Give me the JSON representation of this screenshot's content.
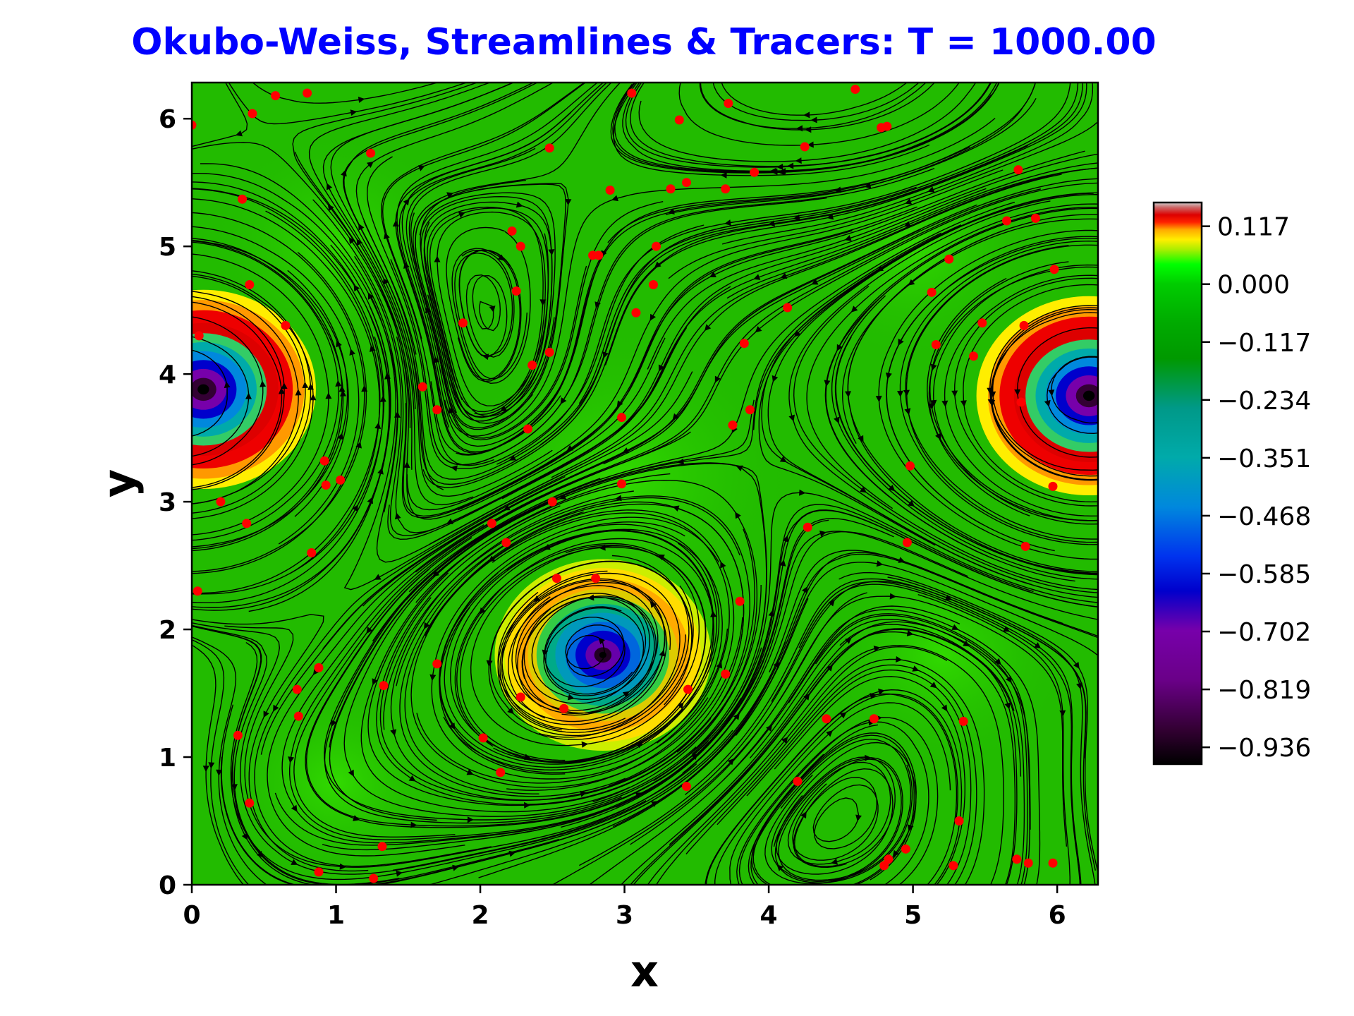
{
  "chart_data": {
    "type": "heatmap",
    "title": "Okubo-Weiss, Streamlines & Tracers: T = 1000.00",
    "title_color": "#0000ff",
    "xlabel": "x",
    "ylabel": "y",
    "xlim": [
      0,
      6.283
    ],
    "ylim": [
      0,
      6.283
    ],
    "x_ticks": [
      "0",
      "1",
      "2",
      "3",
      "4",
      "5",
      "6"
    ],
    "y_ticks": [
      "0",
      "1",
      "2",
      "3",
      "4",
      "5",
      "6"
    ],
    "colormap": "nipy_spectral",
    "background_value_color": "#22bb00",
    "streamline_color": "#000000",
    "tracer_color": "#ff0000",
    "vortices": [
      {
        "x": 0.08,
        "y": 3.88,
        "core_value": -0.936,
        "ring_value": 0.117
      },
      {
        "x": 6.22,
        "y": 3.83,
        "core_value": -0.936,
        "ring_value": 0.117
      },
      {
        "x": 2.85,
        "y": 1.8,
        "core_value": -0.936,
        "ring_value": 0.06
      }
    ],
    "colorbar": {
      "ticks": [
        "0.117",
        "0.000",
        "−0.117",
        "−0.234",
        "−0.351",
        "−0.468",
        "−0.585",
        "−0.702",
        "−0.819",
        "−0.936"
      ],
      "tick_values": [
        0.117,
        0,
        -0.117,
        -0.234,
        -0.351,
        -0.468,
        -0.585,
        -0.702,
        -0.819,
        -0.936
      ],
      "range": [
        -0.97,
        0.165
      ]
    },
    "tracers": [
      [
        0.0,
        5.95
      ],
      [
        0.42,
        6.04
      ],
      [
        0.58,
        6.18
      ],
      [
        0.8,
        6.2
      ],
      [
        0.35,
        5.37
      ],
      [
        0.4,
        4.7
      ],
      [
        0.05,
        4.3
      ],
      [
        0.65,
        4.38
      ],
      [
        0.2,
        3.0
      ],
      [
        0.38,
        2.83
      ],
      [
        0.93,
        3.13
      ],
      [
        0.92,
        3.32
      ],
      [
        1.03,
        3.17
      ],
      [
        0.83,
        2.6
      ],
      [
        0.04,
        2.3
      ],
      [
        0.73,
        1.53
      ],
      [
        0.88,
        1.7
      ],
      [
        0.74,
        1.32
      ],
      [
        0.32,
        1.17
      ],
      [
        0.4,
        0.64
      ],
      [
        0.88,
        0.1
      ],
      [
        1.32,
        0.3
      ],
      [
        1.26,
        0.05
      ],
      [
        1.33,
        1.56
      ],
      [
        1.24,
        5.73
      ],
      [
        1.6,
        3.9
      ],
      [
        1.7,
        3.72
      ],
      [
        1.88,
        4.4
      ],
      [
        1.7,
        1.73
      ],
      [
        2.02,
        1.15
      ],
      [
        2.14,
        0.88
      ],
      [
        2.08,
        2.83
      ],
      [
        2.18,
        2.68
      ],
      [
        2.28,
        1.47
      ],
      [
        2.33,
        3.57
      ],
      [
        2.36,
        4.07
      ],
      [
        2.48,
        4.17
      ],
      [
        2.5,
        3.0
      ],
      [
        2.53,
        2.4
      ],
      [
        2.58,
        1.38
      ],
      [
        2.8,
        2.4
      ],
      [
        2.9,
        5.44
      ],
      [
        2.98,
        3.66
      ],
      [
        2.98,
        3.14
      ],
      [
        2.48,
        5.77
      ],
      [
        2.22,
        5.12
      ],
      [
        2.28,
        5.0
      ],
      [
        2.25,
        4.65
      ],
      [
        2.78,
        4.93
      ],
      [
        2.82,
        4.93
      ],
      [
        3.05,
        6.2
      ],
      [
        3.08,
        4.48
      ],
      [
        3.2,
        4.7
      ],
      [
        3.22,
        5.0
      ],
      [
        3.32,
        5.45
      ],
      [
        3.38,
        5.99
      ],
      [
        3.43,
        5.5
      ],
      [
        3.44,
        1.53
      ],
      [
        3.43,
        0.77
      ],
      [
        3.7,
        1.65
      ],
      [
        3.7,
        5.45
      ],
      [
        3.72,
        6.12
      ],
      [
        3.75,
        3.6
      ],
      [
        3.8,
        2.22
      ],
      [
        3.83,
        4.24
      ],
      [
        3.87,
        3.72
      ],
      [
        3.9,
        5.58
      ],
      [
        4.13,
        4.52
      ],
      [
        4.2,
        0.81
      ],
      [
        4.25,
        5.78
      ],
      [
        4.27,
        2.8
      ],
      [
        4.4,
        1.3
      ],
      [
        4.6,
        6.23
      ],
      [
        4.73,
        1.3
      ],
      [
        4.78,
        5.93
      ],
      [
        4.82,
        5.94
      ],
      [
        4.8,
        0.15
      ],
      [
        4.83,
        0.2
      ],
      [
        4.95,
        0.28
      ],
      [
        4.96,
        2.68
      ],
      [
        4.98,
        3.28
      ],
      [
        5.13,
        4.64
      ],
      [
        5.16,
        4.23
      ],
      [
        5.25,
        4.9
      ],
      [
        5.28,
        0.15
      ],
      [
        5.32,
        0.5
      ],
      [
        5.35,
        1.28
      ],
      [
        5.42,
        4.14
      ],
      [
        5.48,
        4.4
      ],
      [
        5.65,
        5.2
      ],
      [
        5.73,
        5.6
      ],
      [
        5.77,
        4.38
      ],
      [
        5.75,
        3.78
      ],
      [
        5.78,
        2.65
      ],
      [
        5.85,
        5.22
      ],
      [
        5.97,
        3.12
      ],
      [
        5.98,
        4.82
      ],
      [
        5.72,
        0.2
      ],
      [
        5.8,
        0.17
      ],
      [
        5.97,
        0.17
      ]
    ]
  }
}
